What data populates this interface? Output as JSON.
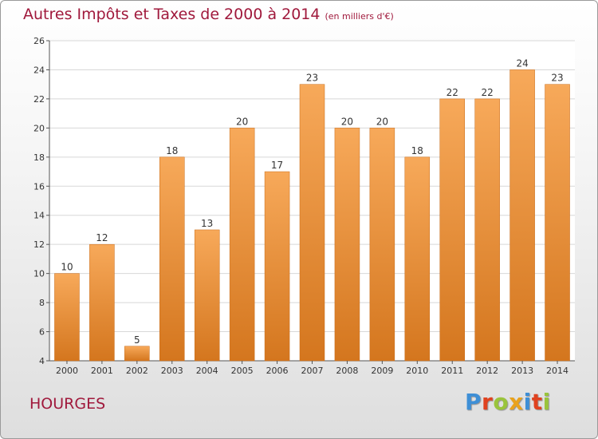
{
  "title": "Autres Impôts et Taxes de 2000 à 2014",
  "unit": "(en milliers d'€)",
  "location": "HOURGES",
  "logo": {
    "text": "Proxiti",
    "colors": [
      "#3e8fd6",
      "#e0421f",
      "#9ac43c",
      "#e9a21c",
      "#3e8fd6",
      "#e0421f",
      "#9ac43c"
    ]
  },
  "colors": {
    "title": "#a0193c",
    "bar_light": "#f7a95a",
    "bar_dark": "#d4761e",
    "grid": "#d8d8d8",
    "axis": "#555555"
  },
  "chart_data": {
    "type": "bar",
    "categories": [
      "2000",
      "2001",
      "2002",
      "2003",
      "2004",
      "2005",
      "2006",
      "2007",
      "2008",
      "2009",
      "2010",
      "2011",
      "2012",
      "2013",
      "2014"
    ],
    "values": [
      10,
      12,
      5,
      18,
      13,
      20,
      17,
      23,
      20,
      20,
      18,
      22,
      22,
      24,
      23
    ],
    "ylim": [
      4,
      26
    ],
    "yticks": [
      4,
      6,
      8,
      10,
      12,
      14,
      16,
      18,
      20,
      22,
      24,
      26
    ],
    "grid": true,
    "xlabel": "",
    "ylabel": ""
  }
}
